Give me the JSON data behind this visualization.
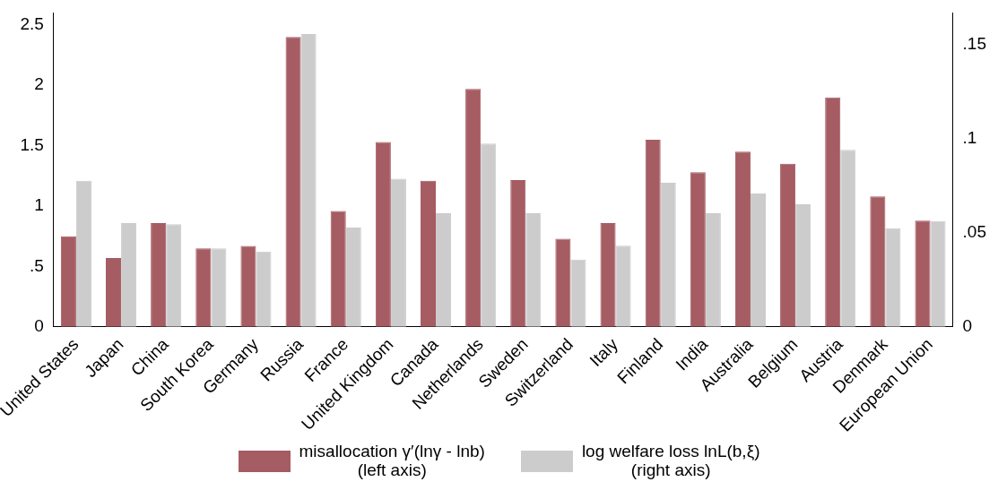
{
  "chart_data": {
    "type": "bar",
    "categories": [
      "United States",
      "Japan",
      "China",
      "South Korea",
      "Germany",
      "Russia",
      "France",
      "United Kingdom",
      "Canada",
      "Netherlands",
      "Sweden",
      "Switzerland",
      "Italy",
      "Finland",
      "India",
      "Australia",
      "Belgium",
      "Austria",
      "Denmark",
      "European Union"
    ],
    "series": [
      {
        "name": "misallocation γ′(lnγ - lnb)\n(left axis)",
        "color": "#a55c62",
        "axis": "y",
        "values": [
          0.75,
          0.57,
          0.86,
          0.65,
          0.67,
          2.4,
          0.96,
          1.53,
          1.21,
          1.97,
          1.215,
          0.73,
          0.86,
          1.55,
          1.28,
          1.45,
          1.35,
          1.9,
          1.08,
          0.88
        ]
      },
      {
        "name": "log welfare loss lnL(b,ξ)\n(right axis)",
        "color": "#cccccc",
        "axis": "y2",
        "values": [
          0.0777,
          0.0552,
          0.0546,
          0.0417,
          0.04,
          0.1557,
          0.0528,
          0.0788,
          0.0604,
          0.0975,
          0.0604,
          0.0358,
          0.0431,
          0.0766,
          0.0604,
          0.0709,
          0.0652,
          0.0941,
          0.0524,
          0.0562
        ]
      }
    ],
    "ylim": [
      0,
      2.6
    ],
    "yticks": [
      0,
      {
        "value": 0.5,
        "label": ".5"
      },
      1,
      1.5,
      2,
      2.5
    ],
    "y2lim": [
      0,
      0.167
    ],
    "y2ticks": [
      0,
      {
        "value": 0.05,
        "label": ".05"
      },
      {
        "value": 0.1,
        "label": ".1"
      },
      {
        "value": 0.15,
        "label": ".15"
      }
    ],
    "grid": false,
    "legend": "bottom"
  }
}
